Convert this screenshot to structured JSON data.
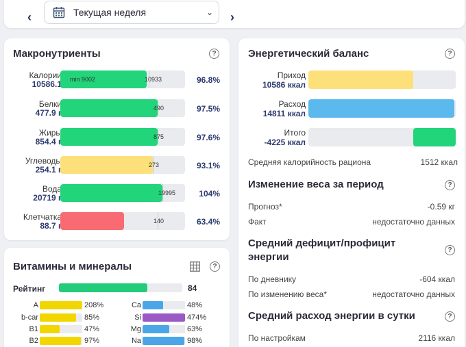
{
  "week_selector": {
    "label": "Текущая неделя",
    "prev": "‹",
    "next": "›"
  },
  "macros": {
    "title": "Макронутриенты",
    "rows": [
      {
        "name": "Калории",
        "value": "10586.1",
        "percent": "96.8%",
        "min_label": "min 9002",
        "target": "10933",
        "color": "#22d47a"
      },
      {
        "name": "Белки",
        "value": "477.9 г",
        "percent": "97.5%",
        "target": "490",
        "color": "#22d47a"
      },
      {
        "name": "Жиры",
        "value": "854.4 г",
        "percent": "97.6%",
        "target": "875",
        "color": "#22d47a"
      },
      {
        "name": "Углеводы",
        "value": "254.1 г",
        "percent": "93.1%",
        "target": "273",
        "color": "#fde07a"
      },
      {
        "name": "Вода",
        "value": "20719 г",
        "percent": "104%",
        "target": "19995",
        "color": "#22d47a"
      },
      {
        "name": "Клетчатка",
        "value": "88.7 г",
        "percent": "63.4%",
        "target": "140",
        "color": "#f96b72"
      }
    ]
  },
  "vitamins": {
    "title": "Витамины и минералы",
    "rating_label": "Рейтинг",
    "rating_value": "84",
    "rating_fraction": 0.84,
    "left": [
      {
        "name": "A",
        "percent": "208%",
        "fraction": 1.0,
        "color": "#f2d600"
      },
      {
        "name": "b-car",
        "percent": "85%",
        "fraction": 0.85,
        "color": "#f2d600"
      },
      {
        "name": "B1",
        "percent": "47%",
        "fraction": 0.47,
        "color": "#f2d600"
      },
      {
        "name": "B2",
        "percent": "97%",
        "fraction": 0.97,
        "color": "#f2d600"
      }
    ],
    "right": [
      {
        "name": "Ca",
        "percent": "48%",
        "fraction": 0.48,
        "color": "#4aa6e6"
      },
      {
        "name": "Si",
        "percent": "474%",
        "fraction": 1.0,
        "color": "#9b59c6"
      },
      {
        "name": "Mg",
        "percent": "63%",
        "fraction": 0.63,
        "color": "#4aa6e6"
      },
      {
        "name": "Na",
        "percent": "98%",
        "fraction": 0.98,
        "color": "#4aa6e6"
      }
    ]
  },
  "energy": {
    "title": "Энергетический баланс",
    "rows": [
      {
        "name": "Приход",
        "value": "10586 ккал",
        "fraction": 0.71,
        "color": "#fde07a"
      },
      {
        "name": "Расход",
        "value": "14811 ккал",
        "fraction": 0.99,
        "color": "#5bb9ee"
      },
      {
        "name": "Итого",
        "value": "-4225 ккал",
        "fraction": 0.29,
        "color": "#22d47a"
      }
    ],
    "avg_label": "Средняя калорийность рациона",
    "avg_value": "1512 ккал",
    "weight_title": "Изменение веса за период",
    "forecast_label": "Прогноз*",
    "forecast_value": "-0.59 кг",
    "fact_label": "Факт",
    "fact_value": "недостаточно данных",
    "deficit_title": "Средний дефицит/профицит энергии",
    "diary_label": "По дневнику",
    "diary_value": "-604 ккал",
    "weight_change_label": "По изменению веса*",
    "weight_change_value": "недостаточно данных",
    "expense_title": "Средний расход энергии в сутки",
    "settings_label": "По настройкам",
    "settings_value": "2116 ккал"
  }
}
